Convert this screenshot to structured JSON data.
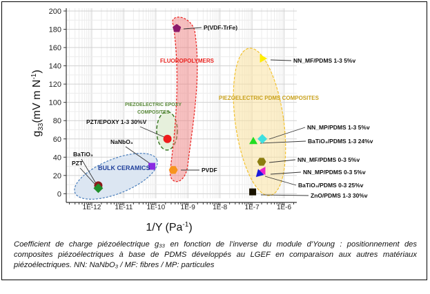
{
  "chart_data": {
    "type": "scatter",
    "title": "",
    "xlabel": "1/Y (Pa",
    "xlabel_sup": "-1",
    "xlabel_end": ")",
    "ylabel": "g",
    "ylabel_sub": "33",
    "ylabel_rest": "(mV m N",
    "ylabel_sup": "-1",
    "ylabel_end": ")",
    "xscale": "log",
    "xlim": [
      1.6e-13,
      2.5e-06
    ],
    "ylim": [
      -5,
      203
    ],
    "grid": true,
    "xticks": [
      "1E-12",
      "1E-11",
      "1E-10",
      "1E-9",
      "1E-8",
      "1E-7",
      "1E-6"
    ],
    "xtick_values": [
      1e-12,
      1e-11,
      1e-10,
      1e-09,
      1e-08,
      1e-07,
      1e-06
    ],
    "yticks": [
      0,
      20,
      40,
      60,
      80,
      100,
      120,
      140,
      160,
      180,
      200
    ],
    "groups": [
      {
        "name": "BULK CERAMICS",
        "color": "#1f3f9a"
      },
      {
        "name": "PIEZOELECTRIC EPOXY",
        "name2": "COMPOSITES",
        "color": "#5a8a3a"
      },
      {
        "name": "FLUOROPOLYMERS",
        "color": "#e8201c"
      },
      {
        "name": "PIEZOELECTRIC PDMS COMPOSITES",
        "color": "#c9a21e"
      }
    ],
    "points": [
      {
        "label": "BaTiO₃",
        "x": 1.6e-12,
        "y": 9,
        "marker": "circle",
        "color": "#8b1a1a"
      },
      {
        "label": "PZT",
        "x": 1.6e-12,
        "y": 6,
        "marker": "diamond",
        "color": "#1f8f2a"
      },
      {
        "label": "NaNbO₃",
        "x": 7.5e-11,
        "y": 30,
        "marker": "square",
        "color": "#8a2be2"
      },
      {
        "label": "PZT/EPOXY 1-3 30%V",
        "x": 2.3e-10,
        "y": 60,
        "marker": "circle",
        "color": "#ee1c1c"
      },
      {
        "label": "PVDF",
        "x": 3.5e-10,
        "y": 26,
        "marker": "hexagon",
        "color": "#f7941d"
      },
      {
        "label": "P(VDF-TrFe)",
        "x": 4.5e-10,
        "y": 181,
        "marker": "pentagon",
        "color": "#8b1a6b"
      },
      {
        "label": "NN_MF/PDMS 1-3 5%v",
        "x": 2.1e-07,
        "y": 148,
        "marker": "triangle-right",
        "color": "#ffee00"
      },
      {
        "label": "NN_MP/PDMS 1-3 5%v",
        "x": 2.1e-07,
        "y": 60,
        "marker": "diamond",
        "color": "#40e0e0"
      },
      {
        "label": "BaTiO₃/PDMS 1-3 24%v",
        "x": 1.1e-07,
        "y": 57,
        "marker": "triangle-up",
        "color": "#22dd22"
      },
      {
        "label": "NN_MF/PDMS 0-3 5%v",
        "x": 2e-07,
        "y": 35,
        "marker": "hexagon",
        "color": "#8b7d10"
      },
      {
        "label": "NN_MP/PDMS 0-3 5%v",
        "x": 2.2e-07,
        "y": 25,
        "marker": "triangle-left",
        "color": "#ee22cc"
      },
      {
        "label": "BaTiO₃/PDMS 0-3 25%v",
        "x": 1.7e-07,
        "y": 22,
        "marker": "triangle-down-left",
        "color": "#1a1add"
      },
      {
        "label": "ZnO/PDMS 1-3 30%v",
        "x": 1.05e-07,
        "y": 2,
        "marker": "square",
        "color": "#1a1400"
      }
    ]
  },
  "caption": "Coefficient de charge piézoélectrique g₃₃ en fonction de l’inverse du module d’Young : positionnement des composites piézoélectriques à base de PDMS développés au LGEF en comparaison aux autres matériaux piézoélectriques. NN: NaNbO₃ / MF: fibres / MP: particules"
}
